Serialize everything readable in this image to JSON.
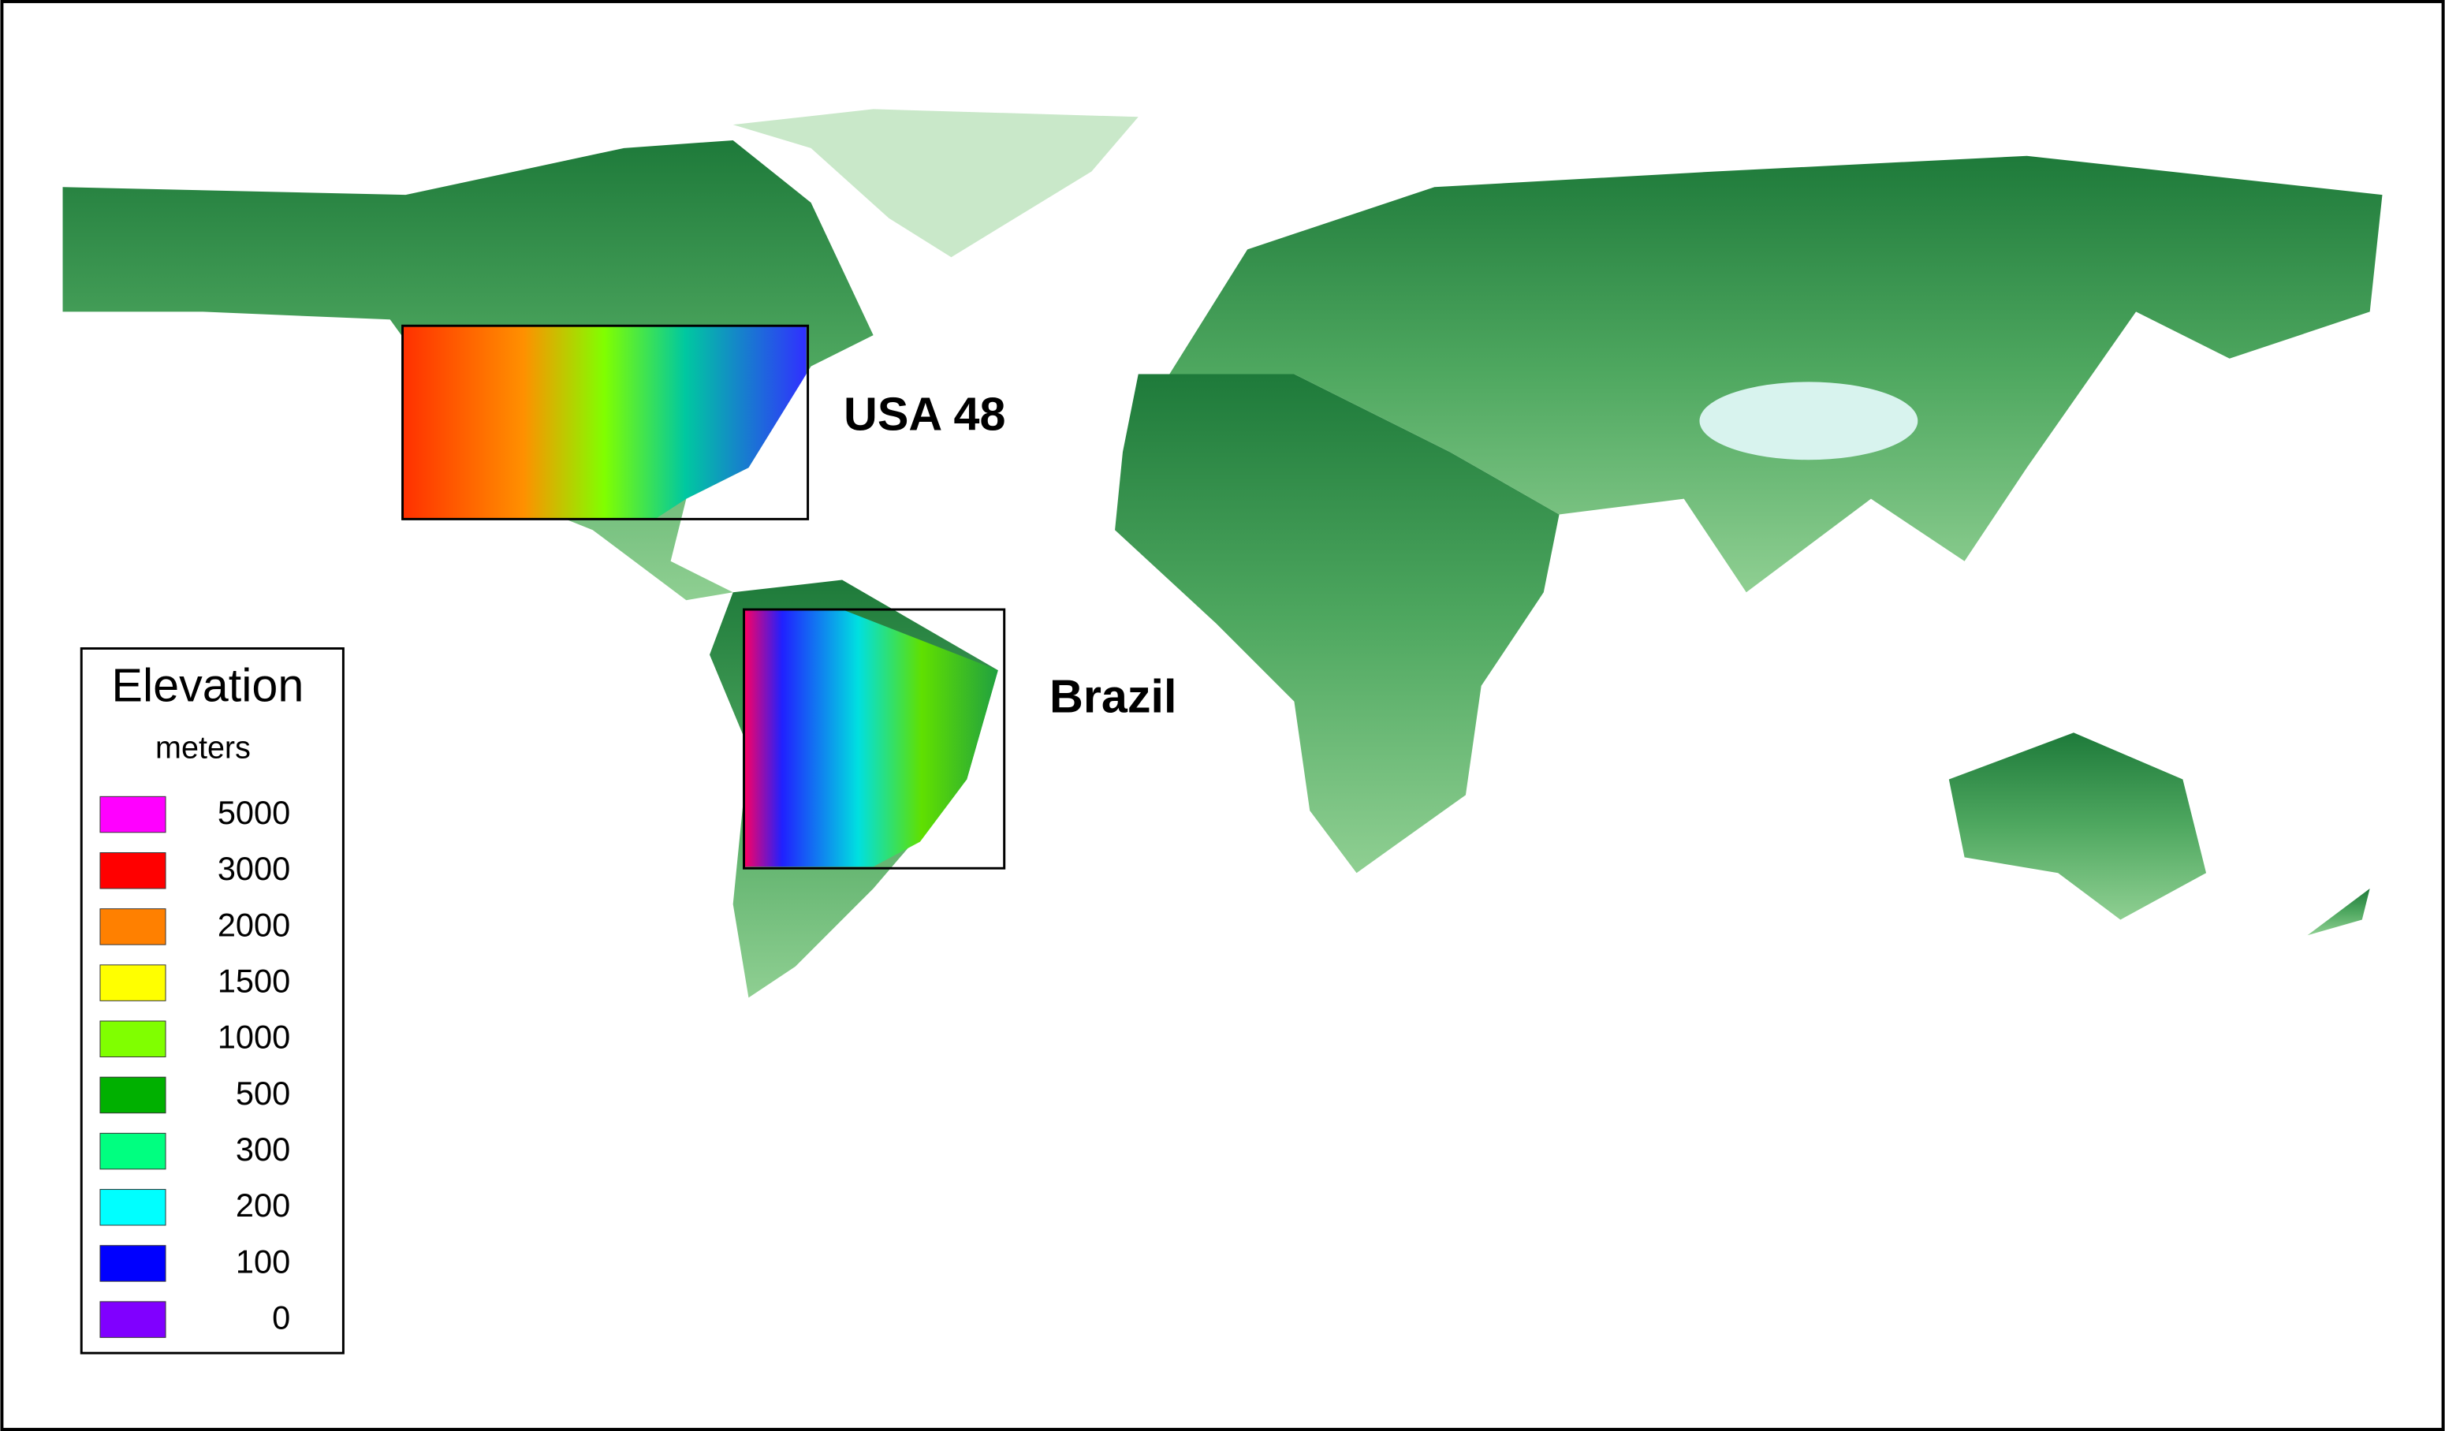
{
  "legend": {
    "title": "Elevation",
    "subtitle": "meters",
    "items": [
      {
        "value": 5000,
        "color": "#ff00ff"
      },
      {
        "value": 3000,
        "color": "#ff0000"
      },
      {
        "value": 2000,
        "color": "#ff8000"
      },
      {
        "value": 1500,
        "color": "#ffff00"
      },
      {
        "value": 1000,
        "color": "#80ff00"
      },
      {
        "value": 500,
        "color": "#00b000"
      },
      {
        "value": 300,
        "color": "#00ff80"
      },
      {
        "value": 200,
        "color": "#00ffff"
      },
      {
        "value": 100,
        "color": "#0000ff"
      },
      {
        "value": 0,
        "color": "#8000ff"
      }
    ]
  },
  "regions": [
    {
      "label": "USA 48"
    },
    {
      "label": "Brazil"
    }
  ]
}
